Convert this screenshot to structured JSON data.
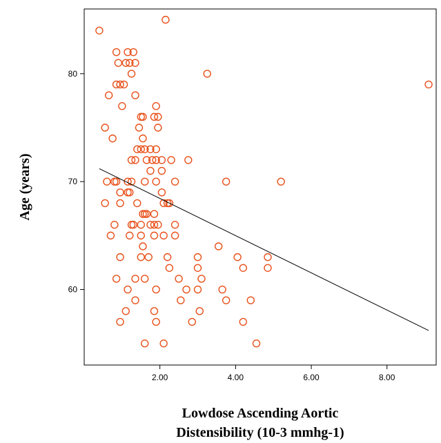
{
  "chart_data": {
    "type": "scatter",
    "title": "",
    "xlabel_lines": [
      "Lowdose Ascending Aortic",
      "Distensibility (10-3 mmhg-1)"
    ],
    "ylabel": "Age (years)",
    "xlim": [
      0.0,
      9.3
    ],
    "ylim": [
      53.0,
      86.0
    ],
    "x_ticks": [
      {
        "value": 2,
        "label": "2.00"
      },
      {
        "value": 4,
        "label": "4.00"
      },
      {
        "value": 6,
        "label": "6.00"
      },
      {
        "value": 8,
        "label": "8.00"
      }
    ],
    "y_ticks": [
      {
        "value": 60,
        "label": "60"
      },
      {
        "value": 70,
        "label": "70"
      },
      {
        "value": 80,
        "label": "80"
      }
    ],
    "grid": false,
    "marker_color": "#e8501a",
    "line_color": "#000000",
    "fit_line": {
      "x": [
        0.4,
        9.1
      ],
      "y": [
        71.2,
        56.2
      ]
    },
    "points": [
      {
        "x": 0.4,
        "y": 84
      },
      {
        "x": 2.15,
        "y": 85
      },
      {
        "x": 9.1,
        "y": 79
      },
      {
        "x": 3.25,
        "y": 80
      },
      {
        "x": 0.85,
        "y": 82
      },
      {
        "x": 1.15,
        "y": 82
      },
      {
        "x": 1.3,
        "y": 82
      },
      {
        "x": 0.9,
        "y": 81
      },
      {
        "x": 1.1,
        "y": 81
      },
      {
        "x": 1.2,
        "y": 81
      },
      {
        "x": 1.35,
        "y": 81
      },
      {
        "x": 1.25,
        "y": 80
      },
      {
        "x": 0.85,
        "y": 79
      },
      {
        "x": 0.95,
        "y": 79
      },
      {
        "x": 1.05,
        "y": 79
      },
      {
        "x": 0.65,
        "y": 78
      },
      {
        "x": 1.35,
        "y": 78
      },
      {
        "x": 1.0,
        "y": 77
      },
      {
        "x": 1.9,
        "y": 77
      },
      {
        "x": 1.5,
        "y": 76
      },
      {
        "x": 1.55,
        "y": 76
      },
      {
        "x": 1.85,
        "y": 76
      },
      {
        "x": 1.95,
        "y": 76
      },
      {
        "x": 0.55,
        "y": 75
      },
      {
        "x": 1.45,
        "y": 75
      },
      {
        "x": 1.95,
        "y": 75
      },
      {
        "x": 0.75,
        "y": 74
      },
      {
        "x": 1.55,
        "y": 74
      },
      {
        "x": 1.4,
        "y": 73
      },
      {
        "x": 1.5,
        "y": 73
      },
      {
        "x": 1.6,
        "y": 73
      },
      {
        "x": 1.75,
        "y": 73
      },
      {
        "x": 1.9,
        "y": 73
      },
      {
        "x": 1.25,
        "y": 72
      },
      {
        "x": 1.35,
        "y": 72
      },
      {
        "x": 1.65,
        "y": 72
      },
      {
        "x": 1.8,
        "y": 72
      },
      {
        "x": 1.9,
        "y": 72
      },
      {
        "x": 2.05,
        "y": 72
      },
      {
        "x": 2.3,
        "y": 72
      },
      {
        "x": 2.75,
        "y": 72
      },
      {
        "x": 1.75,
        "y": 71
      },
      {
        "x": 2.05,
        "y": 71
      },
      {
        "x": 0.6,
        "y": 70
      },
      {
        "x": 0.8,
        "y": 70
      },
      {
        "x": 0.85,
        "y": 70
      },
      {
        "x": 1.15,
        "y": 70
      },
      {
        "x": 1.25,
        "y": 70
      },
      {
        "x": 1.6,
        "y": 70
      },
      {
        "x": 1.9,
        "y": 70
      },
      {
        "x": 2.4,
        "y": 70
      },
      {
        "x": 3.75,
        "y": 70
      },
      {
        "x": 5.2,
        "y": 70
      },
      {
        "x": 0.95,
        "y": 69
      },
      {
        "x": 1.15,
        "y": 69
      },
      {
        "x": 1.2,
        "y": 69
      },
      {
        "x": 2.05,
        "y": 69
      },
      {
        "x": 0.55,
        "y": 68
      },
      {
        "x": 0.95,
        "y": 68
      },
      {
        "x": 1.4,
        "y": 68
      },
      {
        "x": 2.1,
        "y": 68
      },
      {
        "x": 2.2,
        "y": 68
      },
      {
        "x": 2.25,
        "y": 68
      },
      {
        "x": 1.55,
        "y": 67
      },
      {
        "x": 1.6,
        "y": 67
      },
      {
        "x": 1.65,
        "y": 67
      },
      {
        "x": 1.85,
        "y": 67
      },
      {
        "x": 0.8,
        "y": 66
      },
      {
        "x": 1.25,
        "y": 66
      },
      {
        "x": 1.3,
        "y": 66
      },
      {
        "x": 1.5,
        "y": 66
      },
      {
        "x": 1.75,
        "y": 66
      },
      {
        "x": 1.85,
        "y": 66
      },
      {
        "x": 1.95,
        "y": 66
      },
      {
        "x": 2.4,
        "y": 66
      },
      {
        "x": 0.7,
        "y": 65
      },
      {
        "x": 1.2,
        "y": 65
      },
      {
        "x": 1.5,
        "y": 65
      },
      {
        "x": 1.85,
        "y": 65
      },
      {
        "x": 2.1,
        "y": 65
      },
      {
        "x": 2.4,
        "y": 65
      },
      {
        "x": 1.55,
        "y": 64
      },
      {
        "x": 3.55,
        "y": 64
      },
      {
        "x": 0.95,
        "y": 63
      },
      {
        "x": 1.5,
        "y": 63
      },
      {
        "x": 1.7,
        "y": 63
      },
      {
        "x": 2.2,
        "y": 63
      },
      {
        "x": 3.0,
        "y": 63
      },
      {
        "x": 4.05,
        "y": 63
      },
      {
        "x": 4.85,
        "y": 63
      },
      {
        "x": 2.25,
        "y": 62
      },
      {
        "x": 3.0,
        "y": 62
      },
      {
        "x": 4.2,
        "y": 62
      },
      {
        "x": 4.85,
        "y": 62
      },
      {
        "x": 0.85,
        "y": 61
      },
      {
        "x": 1.35,
        "y": 61
      },
      {
        "x": 1.6,
        "y": 61
      },
      {
        "x": 2.5,
        "y": 61
      },
      {
        "x": 3.1,
        "y": 61
      },
      {
        "x": 1.15,
        "y": 60
      },
      {
        "x": 1.9,
        "y": 60
      },
      {
        "x": 2.7,
        "y": 60
      },
      {
        "x": 3.0,
        "y": 60
      },
      {
        "x": 3.65,
        "y": 60
      },
      {
        "x": 1.35,
        "y": 59
      },
      {
        "x": 2.55,
        "y": 59
      },
      {
        "x": 3.75,
        "y": 59
      },
      {
        "x": 4.4,
        "y": 59
      },
      {
        "x": 1.1,
        "y": 58
      },
      {
        "x": 1.85,
        "y": 58
      },
      {
        "x": 3.05,
        "y": 58
      },
      {
        "x": 0.95,
        "y": 57
      },
      {
        "x": 1.9,
        "y": 57
      },
      {
        "x": 2.85,
        "y": 57
      },
      {
        "x": 4.2,
        "y": 57
      },
      {
        "x": 1.6,
        "y": 55
      },
      {
        "x": 2.1,
        "y": 55
      },
      {
        "x": 4.55,
        "y": 55
      }
    ]
  }
}
